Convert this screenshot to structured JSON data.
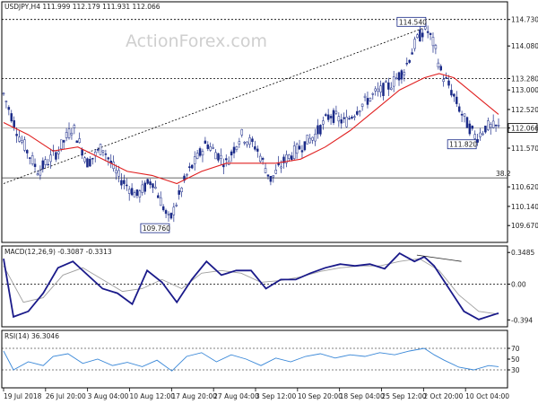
{
  "chart_data": [
    {
      "type": "candlestick",
      "title": "USDJPY,H4  111.999 112.179 111.931 112.066",
      "watermark": "ActionForex.com",
      "ylim": [
        109.3,
        114.9
      ],
      "y_ticks": [
        "114.730",
        "114.080",
        "113.280",
        "113.000",
        "112.520",
        "112.066",
        "111.570",
        "110.620",
        "110.140",
        "109.670"
      ],
      "y_tick_values": [
        114.73,
        114.08,
        113.28,
        113.0,
        112.52,
        112.066,
        111.57,
        110.62,
        110.14,
        109.67
      ],
      "x_ticks": [
        "19 Jul 2018",
        "26 Jul 20:00",
        "3 Aug 04:00",
        "10 Aug 12:00",
        "17 Aug 20:00",
        "27 Aug 04:00",
        "3 Sep 12:00",
        "10 Sep 20:00",
        "18 Sep 04:00",
        "25 Sep 12:00",
        "2 Oct 20:00",
        "10 Oct 04:00"
      ],
      "levels": {
        "top_line": 114.73,
        "resistance": 113.28,
        "fib": 110.84,
        "current": 112.066
      },
      "fib_label": "38.2",
      "annotations": [
        {
          "text": "114.540",
          "x": 0.853,
          "y": 114.54
        },
        {
          "text": "109.760",
          "x": 0.335,
          "y": 109.76
        },
        {
          "text": "111.820",
          "x": 0.955,
          "y": 111.82
        }
      ],
      "price_path": [
        [
          0.0,
          112.9
        ],
        [
          0.03,
          111.9
        ],
        [
          0.07,
          111.0
        ],
        [
          0.11,
          111.5
        ],
        [
          0.14,
          112.1
        ],
        [
          0.17,
          111.2
        ],
        [
          0.2,
          111.6
        ],
        [
          0.23,
          110.9
        ],
        [
          0.27,
          110.4
        ],
        [
          0.3,
          110.8
        ],
        [
          0.335,
          109.76
        ],
        [
          0.37,
          110.9
        ],
        [
          0.41,
          111.7
        ],
        [
          0.45,
          111.2
        ],
        [
          0.48,
          111.9
        ],
        [
          0.51,
          111.6
        ],
        [
          0.54,
          110.8
        ],
        [
          0.57,
          111.3
        ],
        [
          0.6,
          111.6
        ],
        [
          0.63,
          111.9
        ],
        [
          0.66,
          112.4
        ],
        [
          0.69,
          112.2
        ],
        [
          0.72,
          112.6
        ],
        [
          0.75,
          112.9
        ],
        [
          0.78,
          113.1
        ],
        [
          0.81,
          113.5
        ],
        [
          0.834,
          114.2
        ],
        [
          0.853,
          114.54
        ],
        [
          0.87,
          114.1
        ],
        [
          0.885,
          113.4
        ],
        [
          0.9,
          113.1
        ],
        [
          0.915,
          112.7
        ],
        [
          0.93,
          112.3
        ],
        [
          0.955,
          111.82
        ],
        [
          0.975,
          112.1
        ],
        [
          1.0,
          112.066
        ]
      ],
      "sma_path": [
        [
          0.0,
          112.2
        ],
        [
          0.05,
          111.9
        ],
        [
          0.1,
          111.5
        ],
        [
          0.15,
          111.6
        ],
        [
          0.2,
          111.3
        ],
        [
          0.25,
          111.0
        ],
        [
          0.3,
          110.9
        ],
        [
          0.35,
          110.7
        ],
        [
          0.4,
          111.0
        ],
        [
          0.45,
          111.2
        ],
        [
          0.5,
          111.2
        ],
        [
          0.55,
          111.2
        ],
        [
          0.6,
          111.3
        ],
        [
          0.65,
          111.6
        ],
        [
          0.7,
          112.0
        ],
        [
          0.75,
          112.5
        ],
        [
          0.8,
          113.0
        ],
        [
          0.85,
          113.3
        ],
        [
          0.88,
          113.4
        ],
        [
          0.91,
          113.3
        ],
        [
          0.94,
          113.0
        ],
        [
          0.97,
          112.7
        ],
        [
          1.0,
          112.4
        ]
      ],
      "trendline": {
        "from": [
          0.0,
          110.7
        ],
        "to": [
          0.853,
          114.54
        ]
      }
    },
    {
      "type": "line",
      "title": "MACD(12,26,9) -0.3087 -0.3313",
      "ylim": [
        -0.45,
        0.4
      ],
      "y_ticks": [
        "0.3485",
        "0.00",
        "-0.394"
      ],
      "y_tick_values": [
        0.3485,
        0.0,
        -0.394
      ],
      "series": [
        {
          "values": [
            [
              0.0,
              0.28
            ],
            [
              0.02,
              -0.36
            ],
            [
              0.05,
              -0.3
            ],
            [
              0.08,
              -0.1
            ],
            [
              0.11,
              0.18
            ],
            [
              0.14,
              0.25
            ],
            [
              0.17,
              0.1
            ],
            [
              0.2,
              -0.05
            ],
            [
              0.23,
              -0.1
            ],
            [
              0.26,
              -0.22
            ],
            [
              0.29,
              0.15
            ],
            [
              0.32,
              0.02
            ],
            [
              0.35,
              -0.2
            ],
            [
              0.38,
              0.05
            ],
            [
              0.41,
              0.25
            ],
            [
              0.44,
              0.1
            ],
            [
              0.47,
              0.15
            ],
            [
              0.5,
              0.15
            ],
            [
              0.53,
              -0.05
            ],
            [
              0.56,
              0.05
            ],
            [
              0.59,
              0.05
            ],
            [
              0.62,
              0.12
            ],
            [
              0.65,
              0.18
            ],
            [
              0.68,
              0.22
            ],
            [
              0.71,
              0.2
            ],
            [
              0.74,
              0.22
            ],
            [
              0.77,
              0.17
            ],
            [
              0.8,
              0.34
            ],
            [
              0.83,
              0.25
            ],
            [
              0.85,
              0.3
            ],
            [
              0.87,
              0.2
            ],
            [
              0.9,
              -0.05
            ],
            [
              0.93,
              -0.3
            ],
            [
              0.96,
              -0.39
            ],
            [
              1.0,
              -0.32
            ]
          ]
        },
        {
          "values": [
            [
              0.0,
              0.2
            ],
            [
              0.04,
              -0.2
            ],
            [
              0.08,
              -0.15
            ],
            [
              0.12,
              0.1
            ],
            [
              0.16,
              0.18
            ],
            [
              0.2,
              0.05
            ],
            [
              0.24,
              -0.08
            ],
            [
              0.28,
              -0.05
            ],
            [
              0.32,
              0.05
            ],
            [
              0.36,
              -0.05
            ],
            [
              0.4,
              0.12
            ],
            [
              0.44,
              0.15
            ],
            [
              0.48,
              0.12
            ],
            [
              0.52,
              0.02
            ],
            [
              0.56,
              0.04
            ],
            [
              0.6,
              0.08
            ],
            [
              0.64,
              0.14
            ],
            [
              0.68,
              0.18
            ],
            [
              0.72,
              0.2
            ],
            [
              0.76,
              0.2
            ],
            [
              0.8,
              0.25
            ],
            [
              0.84,
              0.28
            ],
            [
              0.88,
              0.15
            ],
            [
              0.92,
              -0.12
            ],
            [
              0.96,
              -0.3
            ],
            [
              1.0,
              -0.33
            ]
          ]
        }
      ],
      "trendline": {
        "from": [
          0.835,
          0.32
        ],
        "to": [
          0.925,
          0.25
        ]
      }
    },
    {
      "type": "line",
      "title": "RSI(14) 36.3046",
      "ylim": [
        0,
        100
      ],
      "y_ticks": [
        "70",
        "50",
        "30"
      ],
      "y_tick_values": [
        70,
        50,
        30
      ],
      "series": [
        {
          "values": [
            [
              0.0,
              65
            ],
            [
              0.02,
              30
            ],
            [
              0.05,
              45
            ],
            [
              0.08,
              38
            ],
            [
              0.1,
              55
            ],
            [
              0.13,
              60
            ],
            [
              0.16,
              42
            ],
            [
              0.19,
              50
            ],
            [
              0.22,
              38
            ],
            [
              0.25,
              44
            ],
            [
              0.28,
              36
            ],
            [
              0.31,
              48
            ],
            [
              0.34,
              28
            ],
            [
              0.37,
              55
            ],
            [
              0.4,
              62
            ],
            [
              0.43,
              45
            ],
            [
              0.46,
              58
            ],
            [
              0.49,
              50
            ],
            [
              0.52,
              38
            ],
            [
              0.55,
              52
            ],
            [
              0.58,
              45
            ],
            [
              0.61,
              55
            ],
            [
              0.64,
              60
            ],
            [
              0.67,
              52
            ],
            [
              0.7,
              58
            ],
            [
              0.73,
              55
            ],
            [
              0.76,
              62
            ],
            [
              0.79,
              58
            ],
            [
              0.82,
              65
            ],
            [
              0.85,
              70
            ],
            [
              0.87,
              58
            ],
            [
              0.89,
              48
            ],
            [
              0.92,
              35
            ],
            [
              0.95,
              30
            ],
            [
              0.98,
              38
            ],
            [
              1.0,
              36
            ]
          ]
        }
      ]
    }
  ],
  "colors": {
    "candle": "#1a2a88",
    "sma": "#e02020",
    "macd_main": "#1a1a8a",
    "macd_signal": "#a0a0a0",
    "rsi": "#3a88d8",
    "border": "#000000",
    "dash": "#000000"
  }
}
